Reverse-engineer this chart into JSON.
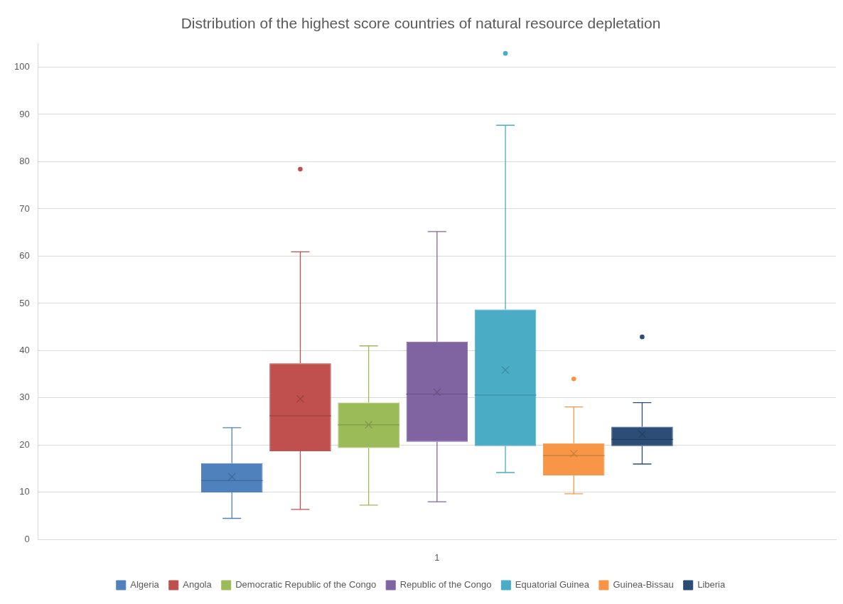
{
  "chart_data": {
    "type": "box",
    "title": "Distribution of the highest score countries of natural resource depletation",
    "categories": [
      "1"
    ],
    "series": [
      {
        "name": "Algeria",
        "color": "#4f81bd",
        "boxes": [
          {
            "low": 4.5,
            "q1": 10.0,
            "median": 12.5,
            "q3": 16.2,
            "high": 23.7,
            "mean": 13.3
          }
        ]
      },
      {
        "name": "Angola",
        "color": "#c0504d",
        "boxes": [
          {
            "low": 6.4,
            "q1": 18.7,
            "median": 26.2,
            "q3": 37.3,
            "high": 60.9,
            "mean": 29.8,
            "outliers": [
              78.4
            ]
          }
        ]
      },
      {
        "name": "Democratic Republic of the Congo",
        "color": "#9bbb59",
        "boxes": [
          {
            "low": 7.3,
            "q1": 19.4,
            "median": 24.3,
            "q3": 29.0,
            "high": 41.0,
            "mean": 24.3
          }
        ]
      },
      {
        "name": "Republic of the Congo",
        "color": "#8064a2",
        "boxes": [
          {
            "low": 8.0,
            "q1": 20.7,
            "median": 30.8,
            "q3": 41.9,
            "high": 65.2,
            "mean": 31.2
          }
        ]
      },
      {
        "name": "Equatorial Guinea",
        "color": "#4bacc6",
        "boxes": [
          {
            "low": 14.2,
            "q1": 19.8,
            "median": 30.6,
            "q3": 48.7,
            "high": 87.7,
            "mean": 35.9,
            "outliers": [
              102.9
            ]
          }
        ]
      },
      {
        "name": "Guinea-Bissau",
        "color": "#f79646",
        "boxes": [
          {
            "low": 9.7,
            "q1": 13.6,
            "median": 17.8,
            "q3": 20.4,
            "high": 28.1,
            "mean": 18.2,
            "outliers": [
              34.0
            ]
          }
        ]
      },
      {
        "name": "Liberia",
        "color": "#2c4d75",
        "boxes": [
          {
            "low": 16.0,
            "q1": 19.8,
            "median": 21.2,
            "q3": 23.9,
            "high": 29.0,
            "mean": 22.3,
            "outliers": [
              42.9
            ]
          }
        ]
      }
    ],
    "ylim": [
      0,
      105
    ],
    "yticks": [
      0,
      10,
      20,
      30,
      40,
      50,
      60,
      70,
      80,
      90,
      100
    ],
    "grid": "y",
    "legend": "bottom"
  }
}
